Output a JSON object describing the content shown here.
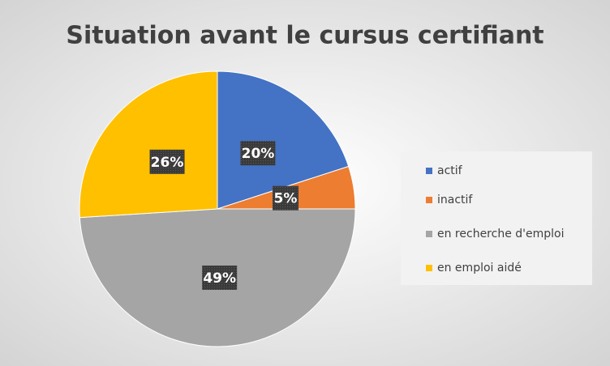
{
  "chart_data": {
    "type": "pie",
    "title": "Situation avant le cursus certifiant",
    "categories": [
      "actif",
      "inactif",
      "en recherche d'emploi",
      "en emploi aidé"
    ],
    "values": [
      20,
      5,
      49,
      26
    ],
    "value_labels": [
      "20%",
      "5%",
      "49%",
      "26%"
    ],
    "colors": [
      "#4472c4",
      "#ed7d31",
      "#a5a5a5",
      "#ffc000"
    ],
    "legend": "right"
  }
}
